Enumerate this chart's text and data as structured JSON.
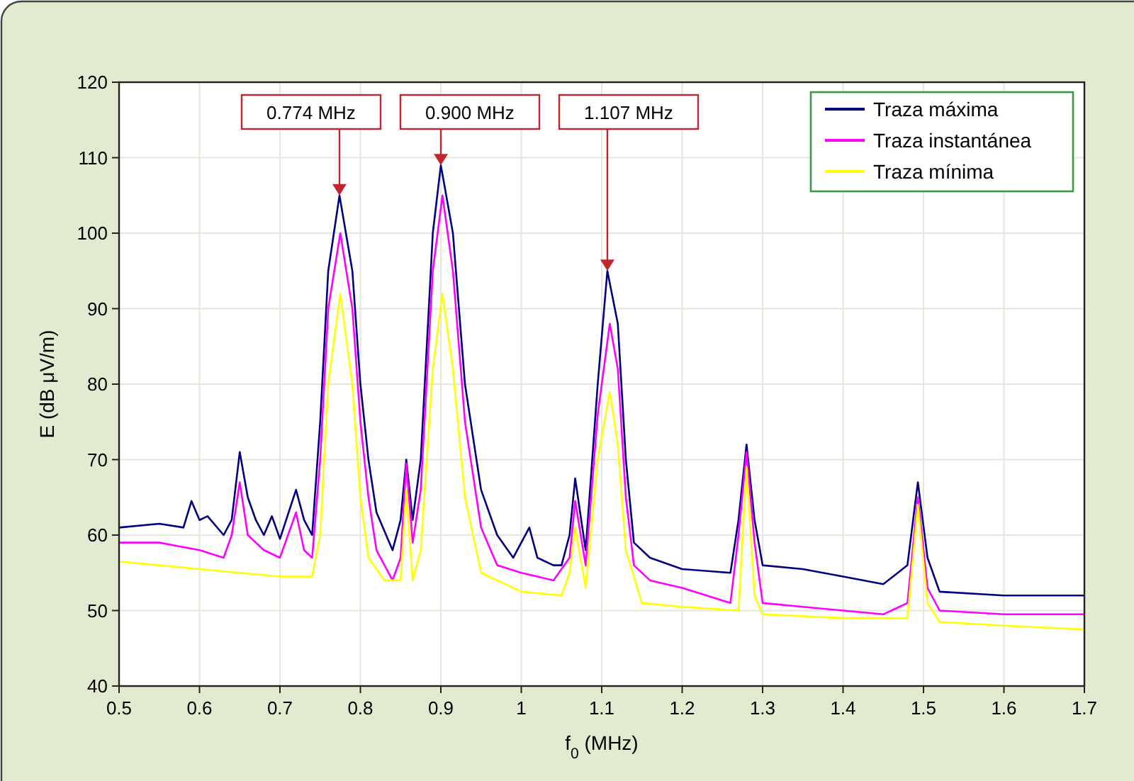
{
  "chart_data": {
    "type": "line",
    "xlabel": "f$_{0}$ (MHz)",
    "ylabel": "E (dB μV/m)",
    "xlim": [
      0.5,
      1.7
    ],
    "xticks": [
      0.5,
      0.6,
      0.7,
      0.8,
      0.9,
      1.0,
      1.1,
      1.2,
      1.3,
      1.4,
      1.5,
      1.6,
      1.7
    ],
    "ylim": [
      40,
      120
    ],
    "yticks": [
      40,
      50,
      60,
      70,
      80,
      90,
      100,
      110,
      120
    ],
    "grid": true,
    "legend": "top right",
    "marker": "none",
    "line_style": "solid",
    "annotations": [
      {
        "text": "0.774 MHz",
        "x": 0.774,
        "y": 105
      },
      {
        "text": "0.900 MHz",
        "x": 0.9,
        "y": 109
      },
      {
        "text": "1.107 MHz",
        "x": 1.107,
        "y": 95
      }
    ],
    "series": [
      {
        "name": "Traza máxima",
        "color": "#000080",
        "x": [
          0.5,
          0.55,
          0.58,
          0.59,
          0.6,
          0.61,
          0.63,
          0.64,
          0.65,
          0.66,
          0.67,
          0.68,
          0.69,
          0.7,
          0.72,
          0.73,
          0.74,
          0.75,
          0.76,
          0.774,
          0.79,
          0.8,
          0.81,
          0.82,
          0.84,
          0.85,
          0.857,
          0.865,
          0.875,
          0.89,
          0.9,
          0.915,
          0.93,
          0.95,
          0.97,
          0.99,
          1.01,
          1.02,
          1.04,
          1.05,
          1.06,
          1.067,
          1.08,
          1.095,
          1.107,
          1.12,
          1.13,
          1.14,
          1.16,
          1.2,
          1.26,
          1.27,
          1.28,
          1.29,
          1.3,
          1.35,
          1.4,
          1.45,
          1.48,
          1.493,
          1.505,
          1.52,
          1.6,
          1.7
        ],
        "values": [
          61,
          61.5,
          61,
          64.5,
          62,
          62.5,
          60,
          62,
          71,
          65,
          62,
          60,
          62.5,
          59.5,
          66,
          62,
          60,
          75,
          95,
          105,
          95,
          80,
          70,
          63,
          58,
          62,
          70,
          62,
          70,
          100,
          109,
          100,
          80,
          66,
          60,
          57,
          61,
          57,
          56,
          56,
          60,
          67.5,
          58,
          80,
          95,
          88,
          70,
          59,
          57,
          55.5,
          55,
          62,
          72,
          62,
          56,
          55.5,
          54.5,
          53.5,
          56,
          67,
          57,
          52.5,
          52,
          52
        ]
      },
      {
        "name": "Traza instantánea",
        "color": "#ff00ff",
        "x": [
          0.5,
          0.55,
          0.6,
          0.63,
          0.64,
          0.65,
          0.66,
          0.68,
          0.7,
          0.72,
          0.73,
          0.74,
          0.75,
          0.76,
          0.775,
          0.79,
          0.8,
          0.81,
          0.82,
          0.84,
          0.85,
          0.857,
          0.865,
          0.875,
          0.89,
          0.902,
          0.915,
          0.93,
          0.95,
          0.97,
          1.0,
          1.04,
          1.06,
          1.067,
          1.08,
          1.095,
          1.11,
          1.12,
          1.13,
          1.14,
          1.16,
          1.2,
          1.26,
          1.27,
          1.28,
          1.29,
          1.3,
          1.35,
          1.4,
          1.45,
          1.48,
          1.493,
          1.505,
          1.52,
          1.6,
          1.7
        ],
        "values": [
          59,
          59,
          58,
          57,
          60,
          67,
          60,
          58,
          57,
          63,
          58,
          57,
          70,
          90,
          100,
          90,
          75,
          65,
          58,
          54,
          57,
          69.5,
          59,
          66,
          95,
          105,
          95,
          75,
          61,
          56,
          55,
          54,
          57,
          64.5,
          56,
          76,
          88,
          82,
          65,
          56,
          54,
          53,
          51,
          60,
          71,
          59,
          51,
          50.5,
          50,
          49.5,
          51,
          65,
          53,
          50,
          49.5,
          49.5
        ]
      },
      {
        "name": "Traza mínima",
        "color": "#ffff00",
        "x": [
          0.5,
          0.55,
          0.6,
          0.65,
          0.7,
          0.74,
          0.75,
          0.76,
          0.775,
          0.79,
          0.8,
          0.81,
          0.83,
          0.85,
          0.857,
          0.865,
          0.875,
          0.89,
          0.902,
          0.915,
          0.93,
          0.95,
          1.0,
          1.05,
          1.06,
          1.067,
          1.08,
          1.095,
          1.11,
          1.12,
          1.13,
          1.15,
          1.2,
          1.27,
          1.28,
          1.29,
          1.3,
          1.4,
          1.48,
          1.493,
          1.505,
          1.52,
          1.6,
          1.7
        ],
        "values": [
          56.5,
          56,
          55.5,
          55,
          54.5,
          54.5,
          60,
          80,
          92,
          80,
          65,
          57,
          54,
          54,
          66,
          54,
          58,
          82,
          92,
          82,
          65,
          55,
          52.5,
          52,
          55,
          61,
          53,
          70,
          79,
          72,
          58,
          51,
          50.5,
          50,
          69,
          52,
          49.5,
          49,
          49,
          64,
          51,
          48.5,
          48,
          47.5
        ]
      }
    ]
  }
}
